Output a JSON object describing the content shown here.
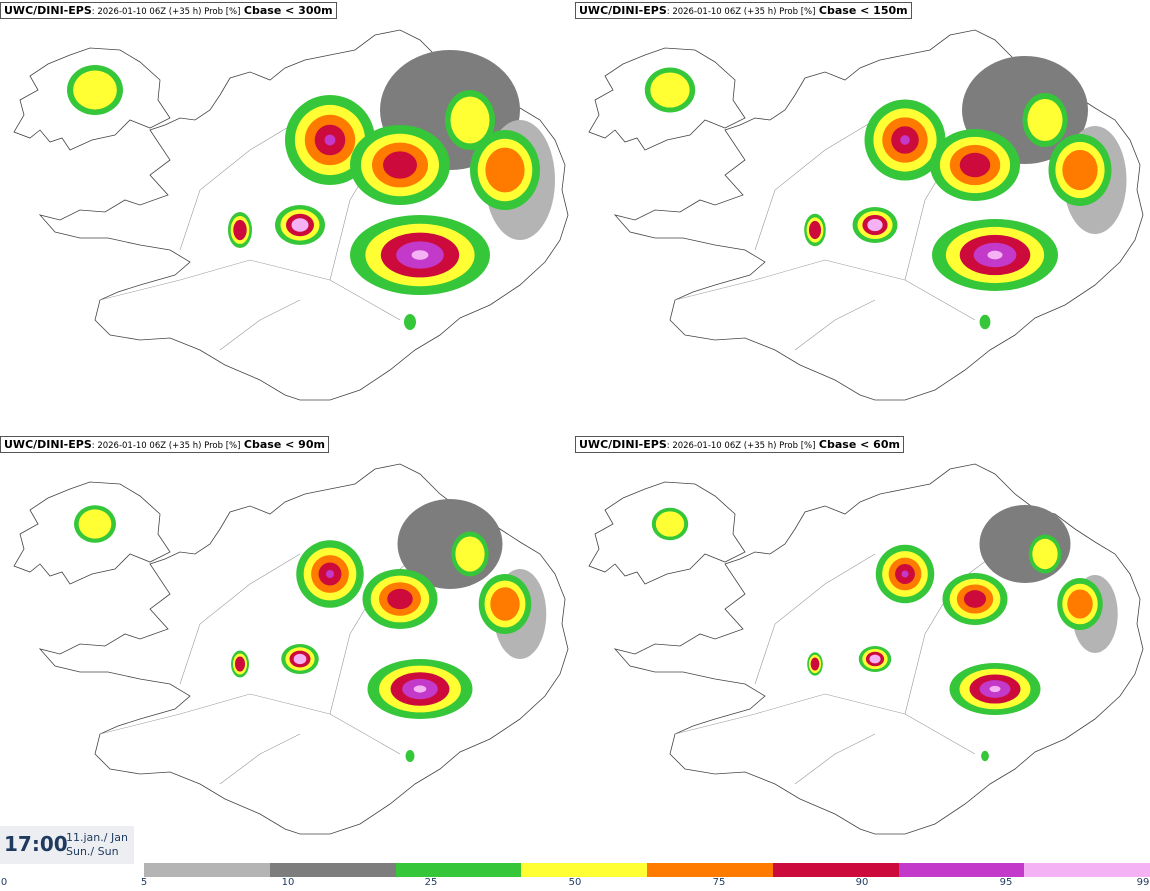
{
  "panels": [
    {
      "model": "UWC/DINI-EPS",
      "run": ": 2026-01-10 06Z (+35 h) Prob [%]",
      "threshold": "Cbase < 300m"
    },
    {
      "model": "UWC/DINI-EPS",
      "run": ": 2026-01-10 06Z (+35 h) Prob [%]",
      "threshold": "Cbase < 150m"
    },
    {
      "model": "UWC/DINI-EPS",
      "run": ": 2026-01-10 06Z (+35 h) Prob [%]",
      "threshold": "Cbase < 90m"
    },
    {
      "model": "UWC/DINI-EPS",
      "run": ": 2026-01-10 06Z (+35 h) Prob [%]",
      "threshold": "Cbase < 60m"
    }
  ],
  "valid_time": {
    "time": "17:00",
    "date_line1": "11.jan./ Jan",
    "date_line2": "Sun./ Sun"
  },
  "colorbar": {
    "ticks": [
      "0",
      "5",
      "10",
      "25",
      "50",
      "75",
      "90",
      "95",
      "99"
    ],
    "colors": [
      "#b4b4b4",
      "#7d7d7d",
      "#35c63a",
      "#ffff33",
      "#ff7b00",
      "#cc0a3c",
      "#c339c9",
      "#f4b2f4"
    ]
  }
}
